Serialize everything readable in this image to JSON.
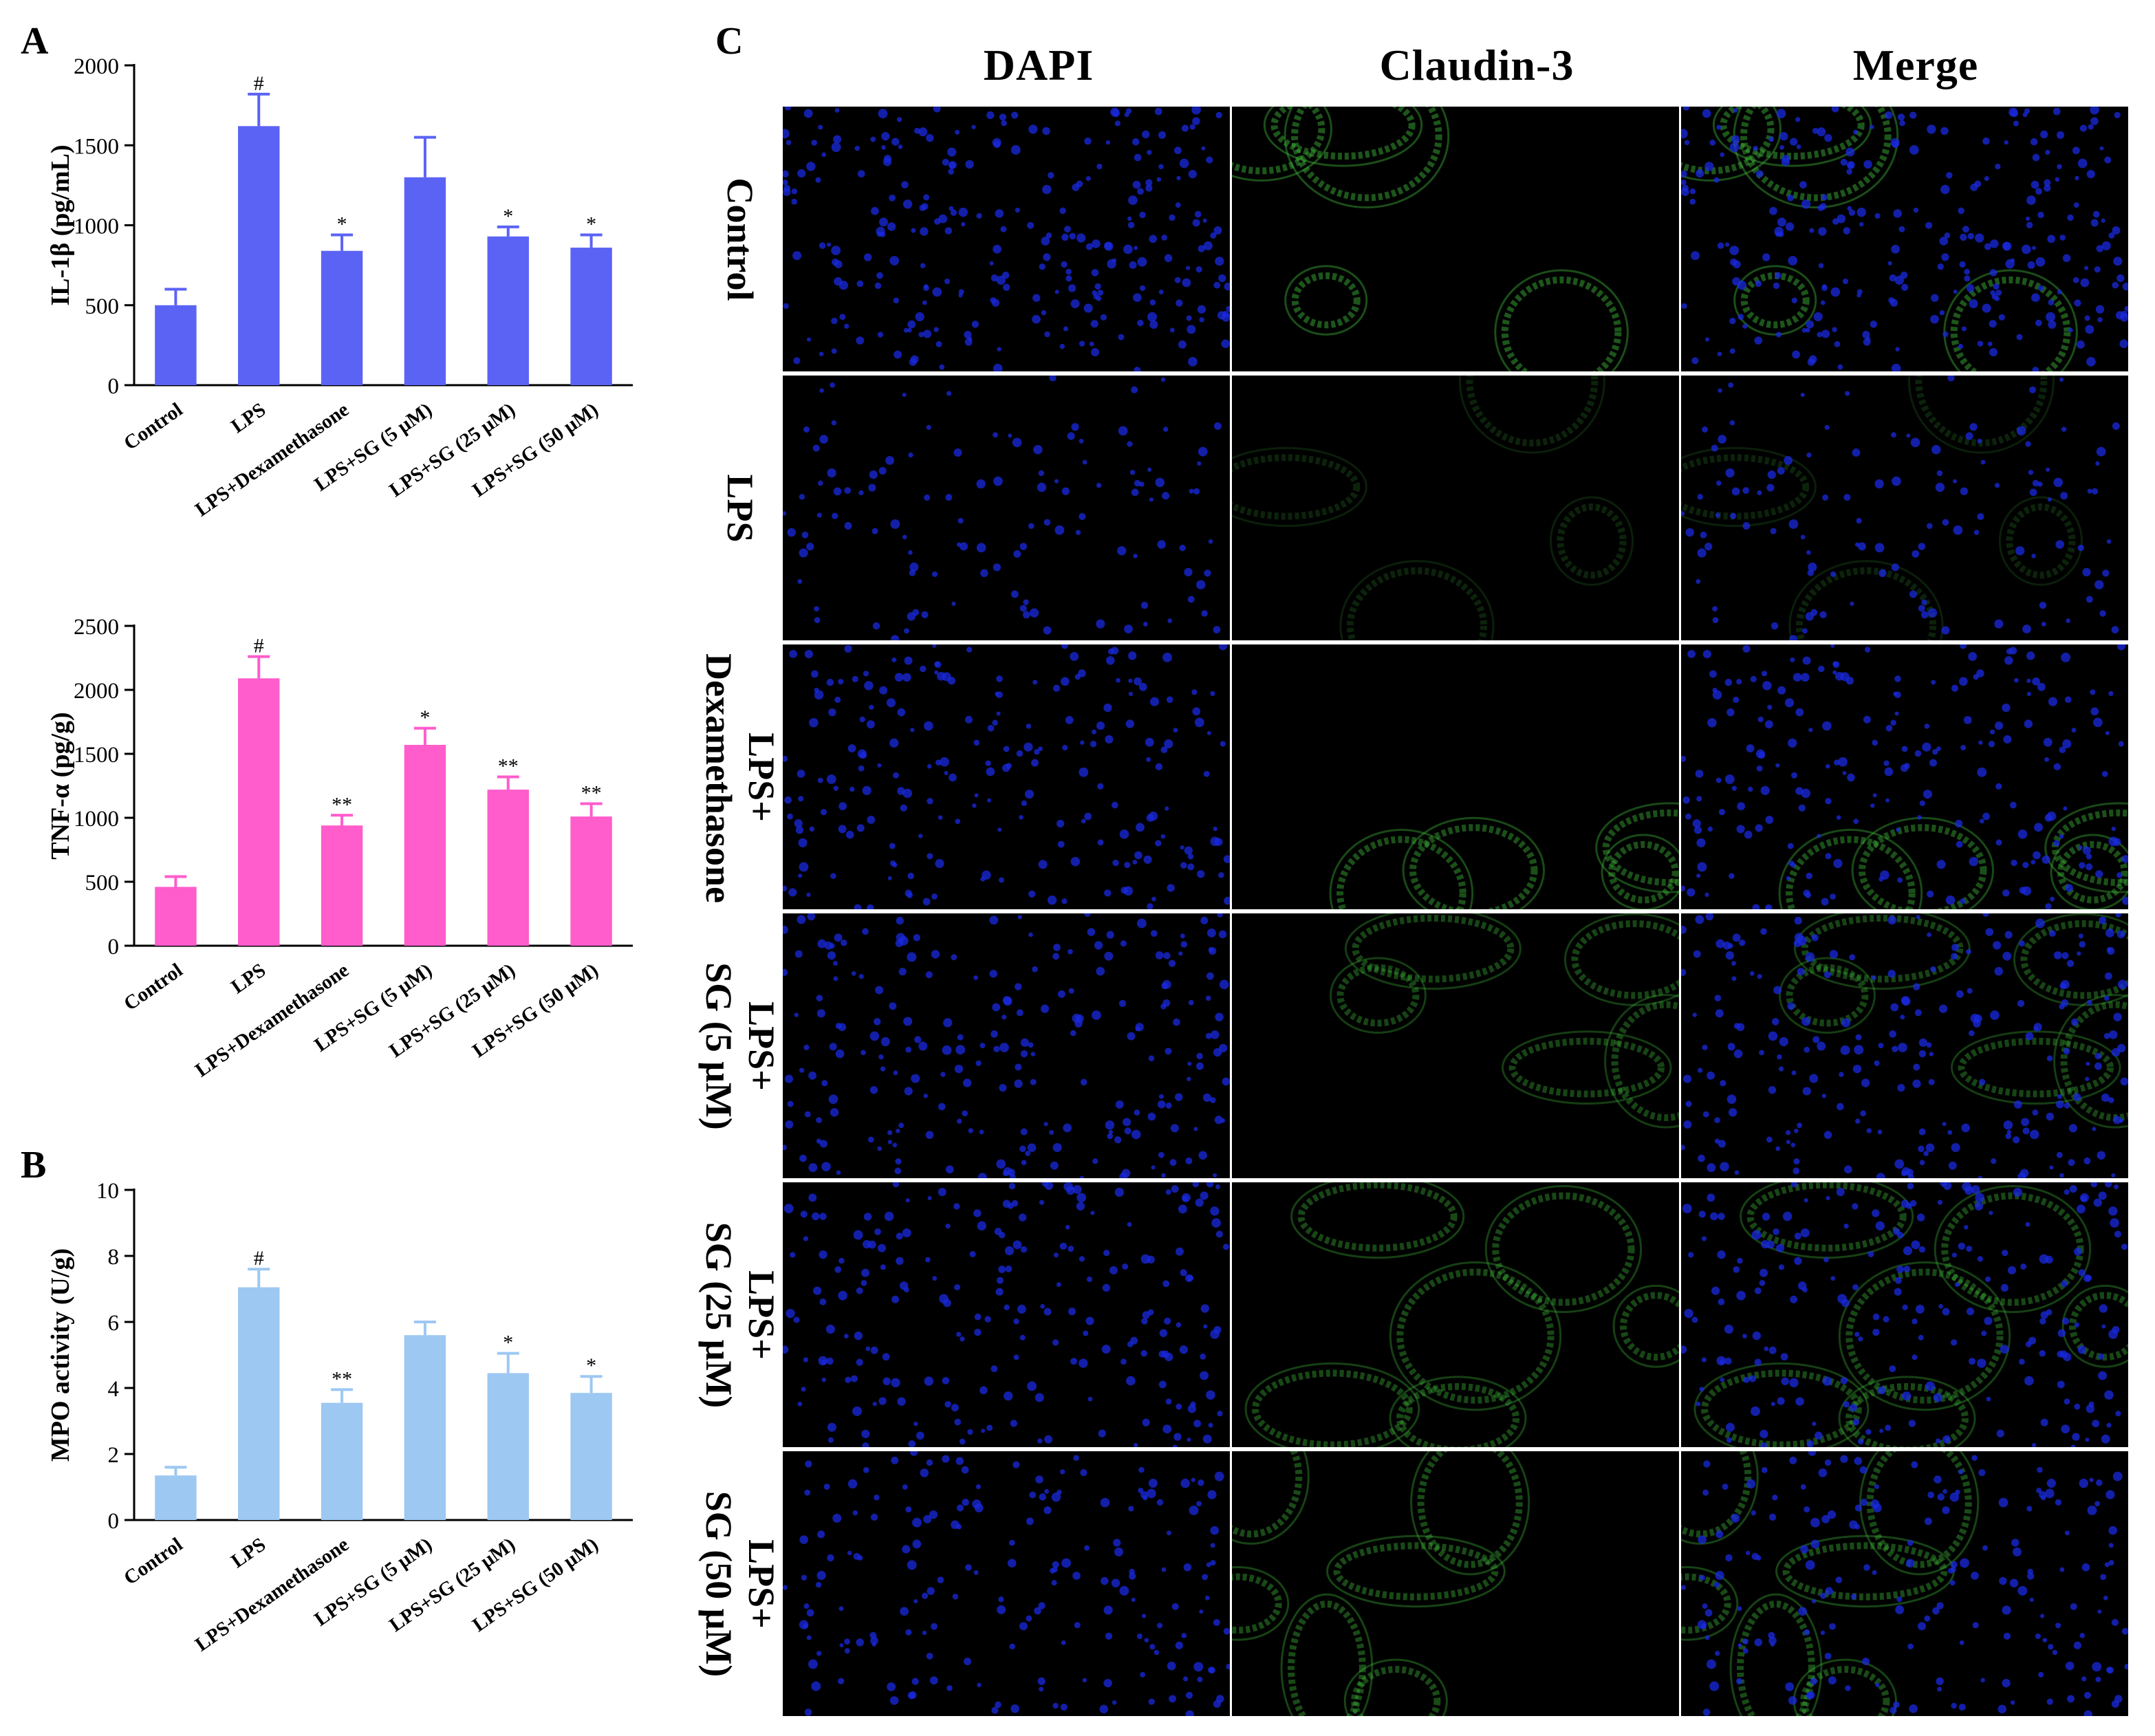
{
  "panels": {
    "a": "A",
    "b": "B",
    "c": "C"
  },
  "chart_data": [
    {
      "type": "bar",
      "panel": "A",
      "ylabel": "IL-1β  (pg/mL)",
      "ylim": [
        0,
        2000
      ],
      "yticks": [
        "0",
        "500",
        "1000",
        "1500",
        "2000"
      ],
      "categories": [
        "Control",
        "LPS",
        "LPS+Dexamethasone",
        "LPS+SG (5 μM)",
        "LPS+SG (25 μM)",
        "LPS+SG (50 μM)"
      ],
      "values": [
        500,
        1620,
        840,
        1300,
        930,
        860
      ],
      "errors": [
        100,
        200,
        100,
        250,
        60,
        80
      ],
      "annotations": [
        "",
        "#",
        "*",
        "",
        "*",
        "*"
      ],
      "color": "#5b63f5"
    },
    {
      "type": "bar",
      "panel": "A",
      "ylabel": "TNF-α  (pg/g)",
      "ylim": [
        0,
        2500
      ],
      "yticks": [
        "0",
        "500",
        "1000",
        "1500",
        "2000",
        "2500"
      ],
      "categories": [
        "Control",
        "LPS",
        "LPS+Dexamethasone",
        "LPS+SG (5 μM)",
        "LPS+SG (25 μM)",
        "LPS+SG (50 μM)"
      ],
      "values": [
        460,
        2090,
        940,
        1570,
        1220,
        1010
      ],
      "errors": [
        80,
        170,
        80,
        130,
        100,
        100
      ],
      "annotations": [
        "",
        "#",
        "**",
        "*",
        "**",
        "**"
      ],
      "color": "#ff5ccc"
    },
    {
      "type": "bar",
      "panel": "B",
      "ylabel": "MPO activity (U/g)",
      "ylim": [
        0,
        10
      ],
      "yticks": [
        "0",
        "2",
        "4",
        "6",
        "8",
        "10"
      ],
      "categories": [
        "Control",
        "LPS",
        "LPS+Dexamethasone",
        "LPS+SG (5 μM)",
        "LPS+SG (25 μM)",
        "LPS+SG (50 μM)"
      ],
      "values": [
        1.35,
        7.05,
        3.55,
        5.6,
        4.45,
        3.85
      ],
      "errors": [
        0.25,
        0.55,
        0.4,
        0.4,
        0.6,
        0.5
      ],
      "annotations": [
        "",
        "#",
        "**",
        "",
        "*",
        "*"
      ],
      "color": "#9dc8f2"
    }
  ],
  "micrographs": {
    "columns": [
      "DAPI",
      "Claudin-3",
      "Merge"
    ],
    "rows": [
      "Control",
      "LPS",
      "LPS+\nDexamethasone",
      "LPS+\nSG (5 μM)",
      "LPS+\nSG (25 μM)",
      "LPS+\nSG (50 μM)"
    ],
    "colors": {
      "nucleus": "#1a2ae0",
      "claudin": "#3fb83a",
      "background": "#000000"
    }
  }
}
